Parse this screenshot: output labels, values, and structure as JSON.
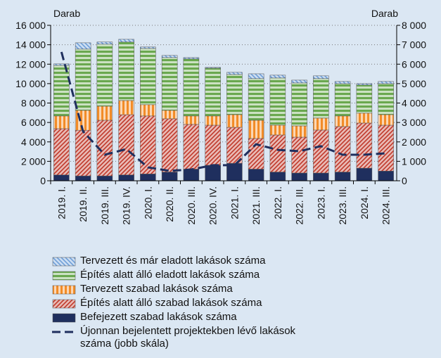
{
  "chart_data": {
    "type": "stacked_bar_line",
    "y_label": "Darab",
    "y2_label": "Darab",
    "categories": [
      "2019. I.",
      "2019. II.",
      "2019. III.",
      "2019. IV.",
      "2020. I.",
      "2020. II.",
      "2020. III.",
      "2020. IV.",
      "2021. I.",
      "2021. III.",
      "2022. I.",
      "2022. III.",
      "2023. I.",
      "2023. III.",
      "2024. I.",
      "2024. III."
    ],
    "series": [
      {
        "name": "Befejezett szabad lakások száma",
        "color": "#1f2f5e",
        "pattern": "solid",
        "values": [
          600,
          500,
          500,
          600,
          700,
          900,
          1200,
          1600,
          1800,
          1200,
          900,
          800,
          800,
          900,
          1300,
          1000
        ]
      },
      {
        "name": "Építés alatt álló szabad lakások száma",
        "color": "#c0392b",
        "pattern": "diagonal",
        "values": [
          4760,
          4700,
          5730,
          6200,
          5970,
          5480,
          4600,
          4120,
          3700,
          3150,
          3810,
          3690,
          4420,
          4680,
          4640,
          4720
        ]
      },
      {
        "name": "Tervezett szabad lakások száma",
        "color": "#f28c28",
        "pattern": "vertical",
        "values": [
          1310,
          2050,
          1450,
          1460,
          1160,
          870,
          870,
          950,
          1310,
          1880,
          1010,
          1160,
          1230,
          1090,
          1020,
          1090
        ]
      },
      {
        "name": "Építés alatt álló eladott lakások száma",
        "color": "#6aa84f",
        "pattern": "horizontal",
        "values": [
          5210,
          6300,
          6380,
          6020,
          5790,
          5430,
          5870,
          4920,
          4130,
          4280,
          4860,
          4420,
          4060,
          3330,
          2900,
          3190
        ]
      },
      {
        "name": "Tervezett és már eladott lakások száma",
        "color": "#6f9fd8",
        "pattern": "diagonal-rev",
        "values": [
          150,
          650,
          220,
          280,
          150,
          220,
          140,
          80,
          220,
          500,
          290,
          290,
          290,
          220,
          140,
          220
        ]
      },
      {
        "name": "Újonnan bejelentett projektekben lévő lakások száma (jobb skála)",
        "color": "#1f2f5e",
        "line": true,
        "axis": "y2",
        "values": [
          6630,
          2540,
          1340,
          1630,
          690,
          510,
          580,
          800,
          800,
          1880,
          1590,
          1520,
          1780,
          1340,
          1340,
          1410
        ]
      }
    ],
    "ylim": [
      0,
      16000
    ],
    "yticks": [
      0,
      {
        "value": 2000,
        "label": "2 000"
      },
      {
        "value": 4000,
        "label": "4 000"
      },
      {
        "value": 6000,
        "label": "6 000"
      },
      {
        "value": 8000,
        "label": "8 000"
      },
      {
        "value": 10000,
        "label": "10 000"
      },
      {
        "value": 12000,
        "label": "12 000"
      },
      {
        "value": 14000,
        "label": "14 000"
      },
      {
        "value": 16000,
        "label": "16 000"
      }
    ],
    "y2lim": [
      0,
      8000
    ],
    "y2ticks": [
      0,
      {
        "value": 1000,
        "label": "1 000"
      },
      {
        "value": 2000,
        "label": "2 000"
      },
      {
        "value": 3000,
        "label": "3 000"
      },
      {
        "value": 4000,
        "label": "4 000"
      },
      {
        "value": 5000,
        "label": "5 000"
      },
      {
        "value": 6000,
        "label": "6 000"
      },
      {
        "value": 7000,
        "label": "7 000"
      },
      {
        "value": 8000,
        "label": "8 000"
      }
    ],
    "grid": true
  }
}
